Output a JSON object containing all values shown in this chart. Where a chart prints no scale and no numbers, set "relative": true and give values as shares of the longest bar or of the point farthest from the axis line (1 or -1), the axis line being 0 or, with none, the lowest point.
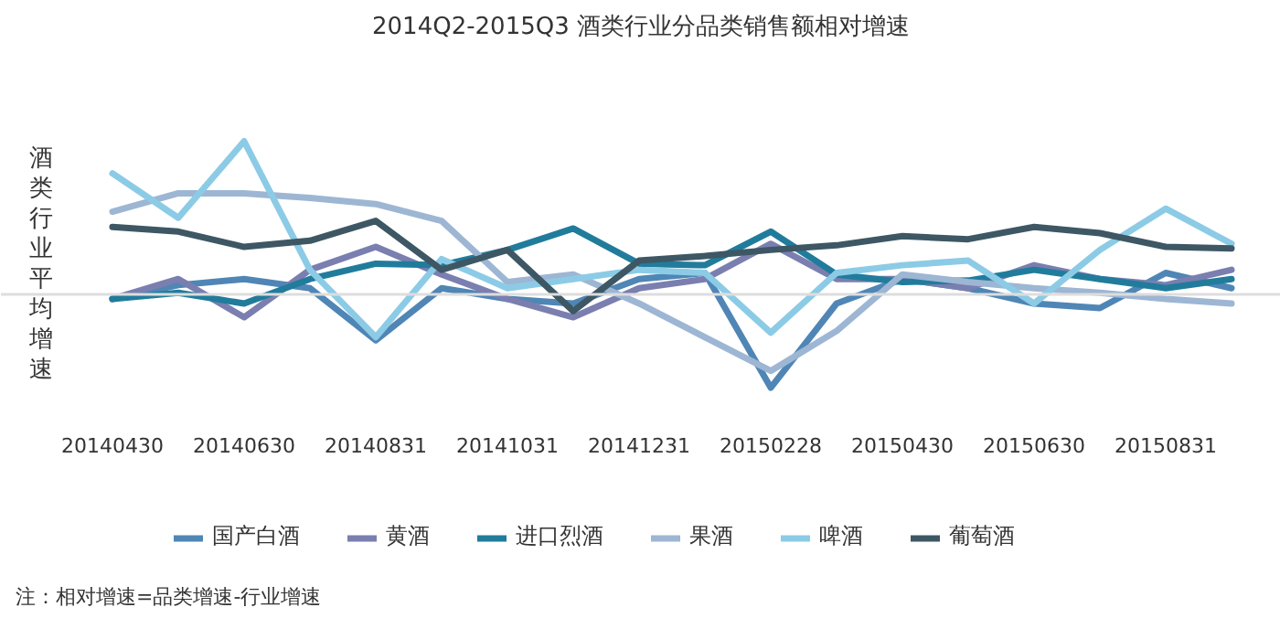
{
  "chart_data": {
    "type": "line",
    "title": "2014Q2-2015Q3 酒类行业分品类销售额相对增速",
    "ylabel": "酒类行业平均增速",
    "relative": true,
    "legend": "bottom",
    "line_style": "solid",
    "categories": [
      "20140430",
      null,
      "20140630",
      null,
      "20140831",
      null,
      "20141031",
      null,
      "20141231",
      null,
      "20150228",
      null,
      "20150430",
      null,
      "20150630",
      null,
      "20150831",
      null
    ],
    "series": [
      {
        "name": "国产白酒",
        "color": "#4f86b5",
        "values": [
          -0.03,
          0.06,
          0.1,
          0.04,
          -0.3,
          0.04,
          -0.03,
          -0.06,
          0.1,
          0.14,
          -0.61,
          -0.06,
          0.1,
          0.04,
          -0.06,
          -0.09,
          0.14,
          0.04
        ]
      },
      {
        "name": "黄酒",
        "color": "#7a7fb0",
        "values": [
          -0.03,
          0.1,
          -0.15,
          0.16,
          0.31,
          0.13,
          -0.03,
          -0.15,
          0.04,
          0.1,
          0.33,
          0.1,
          0.1,
          0.04,
          0.19,
          0.1,
          0.06,
          0.16
        ]
      },
      {
        "name": "进口烈酒",
        "color": "#217c9c",
        "values": [
          -0.03,
          0.01,
          -0.06,
          0.1,
          0.2,
          0.19,
          0.29,
          0.43,
          0.2,
          0.19,
          0.41,
          0.13,
          0.08,
          0.09,
          0.16,
          0.1,
          0.04,
          0.1
        ]
      },
      {
        "name": "果酒",
        "color": "#9db6d3",
        "values": [
          0.54,
          0.66,
          0.66,
          0.63,
          0.59,
          0.48,
          0.08,
          0.13,
          -0.06,
          -0.28,
          -0.5,
          -0.24,
          0.13,
          0.08,
          0.04,
          0.01,
          -0.03,
          -0.06
        ]
      },
      {
        "name": "啤酒",
        "color": "#8ccbe6",
        "values": [
          0.79,
          0.5,
          1.0,
          0.16,
          -0.28,
          0.23,
          0.04,
          0.1,
          0.16,
          0.14,
          -0.25,
          0.14,
          0.19,
          0.22,
          -0.06,
          0.29,
          0.56,
          0.33
        ]
      },
      {
        "name": "葡萄酒",
        "color": "#3e5764",
        "values": [
          0.44,
          0.41,
          0.31,
          0.35,
          0.48,
          0.16,
          0.29,
          -0.11,
          0.22,
          0.25,
          0.29,
          0.32,
          0.38,
          0.36,
          0.44,
          0.4,
          0.31,
          0.3
        ]
      }
    ],
    "annotations": [
      "注：相对增速=品类增速-行业增速"
    ]
  }
}
